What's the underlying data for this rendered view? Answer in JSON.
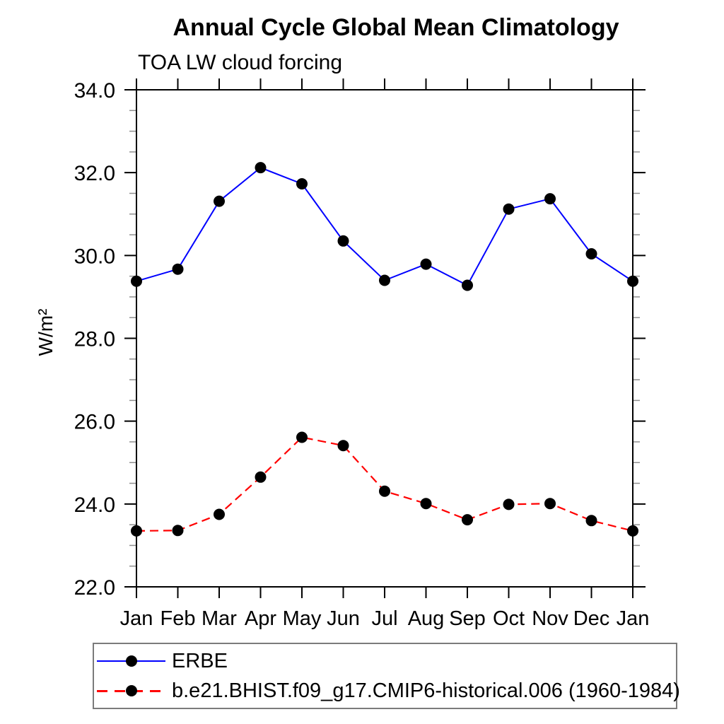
{
  "page": {
    "background": "#ffffff",
    "frame_color": "#000000"
  },
  "chart_data": {
    "type": "line",
    "title": "Annual Cycle Global Mean Climatology",
    "subtitle": "TOA LW cloud forcing",
    "ylabel": "W/m²",
    "x_categories": [
      "Jan",
      "Feb",
      "Mar",
      "Apr",
      "May",
      "Jun",
      "Jul",
      "Aug",
      "Sep",
      "Oct",
      "Nov",
      "Dec",
      "Jan"
    ],
    "ylim": [
      22.0,
      34.0
    ],
    "ytick_labels": [
      "22.0",
      "24.0",
      "26.0",
      "28.0",
      "30.0",
      "32.0",
      "34.0"
    ],
    "ytick_major_step": 2.0,
    "ytick_minor_step": 0.5,
    "grid": false,
    "legend_position": "bottom-left-box",
    "series": [
      {
        "name": "ERBE",
        "line_color": "#0000ff",
        "line_style": "solid",
        "marker": "filled-circle",
        "marker_color": "#000000",
        "values": [
          29.38,
          29.67,
          31.31,
          32.12,
          31.73,
          30.35,
          29.4,
          29.79,
          29.28,
          31.12,
          31.37,
          30.04,
          29.38
        ]
      },
      {
        "name": "b.e21.BHIST.f09_g17.CMIP6-historical.006 (1960-1984)",
        "line_color": "#ff0000",
        "line_style": "dashed",
        "marker": "filled-circle",
        "marker_color": "#000000",
        "values": [
          23.35,
          23.36,
          23.75,
          24.65,
          25.61,
          25.41,
          24.31,
          24.01,
          23.62,
          23.99,
          24.01,
          23.6,
          23.35
        ]
      }
    ]
  }
}
